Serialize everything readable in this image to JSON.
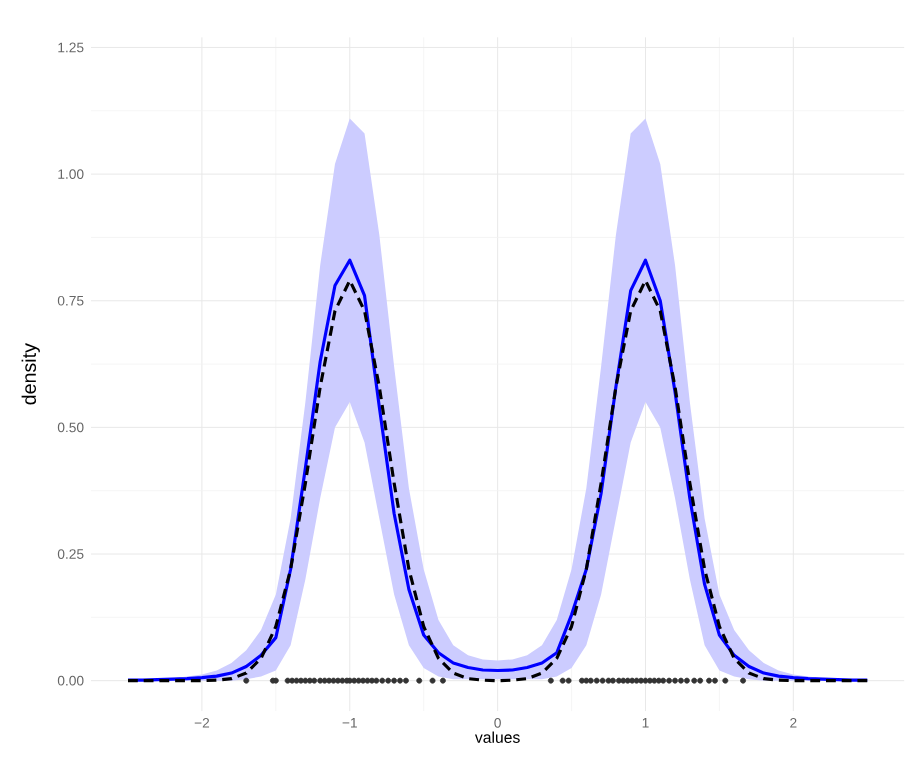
{
  "chart_data": {
    "type": "line",
    "xlabel": "values",
    "ylabel": "density",
    "xlim": [
      -2.75,
      2.75
    ],
    "ylim": [
      -0.06,
      1.27
    ],
    "xticks": [
      {
        "value": -2,
        "label": "−2"
      },
      {
        "value": -1,
        "label": "−1"
      },
      0,
      1,
      2
    ],
    "yticks": [
      {
        "value": 0,
        "label": "0.00"
      },
      {
        "value": 0.25,
        "label": "0.25"
      },
      {
        "value": 0.5,
        "label": "0.50"
      },
      {
        "value": 0.75,
        "label": "0.75"
      },
      {
        "value": 1,
        "label": "1.00"
      },
      {
        "value": 1.25,
        "label": "1.25"
      }
    ],
    "grid": true,
    "series": [
      {
        "color": "#0000ff",
        "line_style": "solid",
        "x": [
          -2.5,
          -2.4,
          -2.3,
          -2.2,
          -2.1,
          -2.0,
          -1.9,
          -1.8,
          -1.7,
          -1.6,
          -1.5,
          -1.4,
          -1.3,
          -1.2,
          -1.1,
          -1.0,
          -0.9,
          -0.8,
          -0.7,
          -0.6,
          -0.5,
          -0.4,
          -0.3,
          -0.2,
          -0.1,
          0,
          0.1,
          0.2,
          0.3,
          0.4,
          0.5,
          0.6,
          0.7,
          0.8,
          0.9,
          1.0,
          1.1,
          1.2,
          1.3,
          1.4,
          1.5,
          1.6,
          1.7,
          1.8,
          1.9,
          2.0,
          2.1,
          2.2,
          2.3,
          2.4,
          2.5
        ],
        "values": [
          0.001,
          0.001,
          0.002,
          0.003,
          0.004,
          0.006,
          0.009,
          0.015,
          0.028,
          0.05,
          0.085,
          0.22,
          0.42,
          0.63,
          0.78,
          0.83,
          0.76,
          0.54,
          0.33,
          0.18,
          0.09,
          0.055,
          0.035,
          0.026,
          0.021,
          0.02,
          0.021,
          0.026,
          0.035,
          0.055,
          0.13,
          0.22,
          0.37,
          0.58,
          0.77,
          0.83,
          0.75,
          0.57,
          0.36,
          0.19,
          0.09,
          0.05,
          0.028,
          0.015,
          0.009,
          0.006,
          0.004,
          0.003,
          0.002,
          0.001,
          0.001
        ],
        "upper": [
          0.001,
          0.002,
          0.003,
          0.005,
          0.008,
          0.012,
          0.02,
          0.035,
          0.06,
          0.1,
          0.17,
          0.32,
          0.55,
          0.82,
          1.02,
          1.11,
          1.08,
          0.88,
          0.62,
          0.38,
          0.22,
          0.12,
          0.07,
          0.05,
          0.042,
          0.04,
          0.042,
          0.05,
          0.07,
          0.12,
          0.22,
          0.38,
          0.62,
          0.88,
          1.08,
          1.11,
          1.02,
          0.82,
          0.55,
          0.32,
          0.17,
          0.1,
          0.06,
          0.035,
          0.02,
          0.012,
          0.008,
          0.005,
          0.003,
          0.002,
          0.001
        ],
        "lower": [
          0,
          0,
          0,
          0,
          0,
          0,
          0,
          0,
          0.003,
          0.008,
          0.02,
          0.07,
          0.2,
          0.36,
          0.5,
          0.55,
          0.47,
          0.32,
          0.17,
          0.07,
          0.025,
          0.008,
          0.003,
          0.003,
          0.003,
          0.003,
          0.003,
          0.003,
          0.003,
          0.008,
          0.025,
          0.07,
          0.17,
          0.32,
          0.47,
          0.55,
          0.5,
          0.36,
          0.2,
          0.07,
          0.02,
          0.008,
          0.003,
          0,
          0,
          0,
          0,
          0,
          0,
          0,
          0
        ]
      },
      {
        "color": "#000000",
        "line_style": "dashed",
        "x": [
          -2.5,
          -2.4,
          -2.3,
          -2.2,
          -2.1,
          -2.0,
          -1.9,
          -1.8,
          -1.7,
          -1.6,
          -1.5,
          -1.4,
          -1.3,
          -1.2,
          -1.1,
          -1.0,
          -0.9,
          -0.8,
          -0.7,
          -0.6,
          -0.5,
          -0.4,
          -0.3,
          -0.2,
          -0.1,
          0,
          0.1,
          0.2,
          0.3,
          0.4,
          0.5,
          0.6,
          0.7,
          0.8,
          0.9,
          1.0,
          1.1,
          1.2,
          1.3,
          1.4,
          1.5,
          1.6,
          1.7,
          1.8,
          1.9,
          2.0,
          2.1,
          2.2,
          2.3,
          2.4,
          2.5
        ],
        "values": [
          0,
          0,
          0,
          0,
          0,
          0,
          0.001,
          0.004,
          0.015,
          0.044,
          0.107,
          0.22,
          0.39,
          0.58,
          0.73,
          0.79,
          0.73,
          0.58,
          0.39,
          0.22,
          0.107,
          0.044,
          0.015,
          0.004,
          0.001,
          0,
          0.001,
          0.004,
          0.015,
          0.044,
          0.107,
          0.22,
          0.39,
          0.58,
          0.73,
          0.79,
          0.73,
          0.58,
          0.39,
          0.22,
          0.107,
          0.044,
          0.015,
          0.004,
          0.001,
          0,
          0,
          0,
          0,
          0,
          0
        ]
      },
      {
        "type": "scatter",
        "color": "#333333",
        "marker": "circle",
        "x": [
          -1.7,
          -1.52,
          -1.5,
          -1.42,
          -1.39,
          -1.36,
          -1.33,
          -1.3,
          -1.27,
          -1.24,
          -1.2,
          -1.17,
          -1.14,
          -1.11,
          -1.08,
          -1.05,
          -1.02,
          -1.0,
          -0.97,
          -0.94,
          -0.91,
          -0.88,
          -0.85,
          -0.82,
          -0.78,
          -0.74,
          -0.7,
          -0.66,
          -0.62,
          -0.53,
          -0.44,
          -0.37,
          0.36,
          0.44,
          0.48,
          0.57,
          0.6,
          0.63,
          0.67,
          0.71,
          0.75,
          0.78,
          0.82,
          0.85,
          0.88,
          0.91,
          0.94,
          0.97,
          1.0,
          1.03,
          1.06,
          1.09,
          1.12,
          1.16,
          1.2,
          1.24,
          1.28,
          1.33,
          1.37,
          1.43,
          1.47,
          1.54,
          1.66
        ],
        "values": [
          0,
          0,
          0,
          0,
          0,
          0,
          0,
          0,
          0,
          0,
          0,
          0,
          0,
          0,
          0,
          0,
          0,
          0,
          0,
          0,
          0,
          0,
          0,
          0,
          0,
          0,
          0,
          0,
          0,
          0,
          0,
          0,
          0,
          0,
          0,
          0,
          0,
          0,
          0,
          0,
          0,
          0,
          0,
          0,
          0,
          0,
          0,
          0,
          0,
          0,
          0,
          0,
          0,
          0,
          0,
          0,
          0,
          0,
          0,
          0,
          0,
          0,
          0
        ]
      }
    ]
  }
}
